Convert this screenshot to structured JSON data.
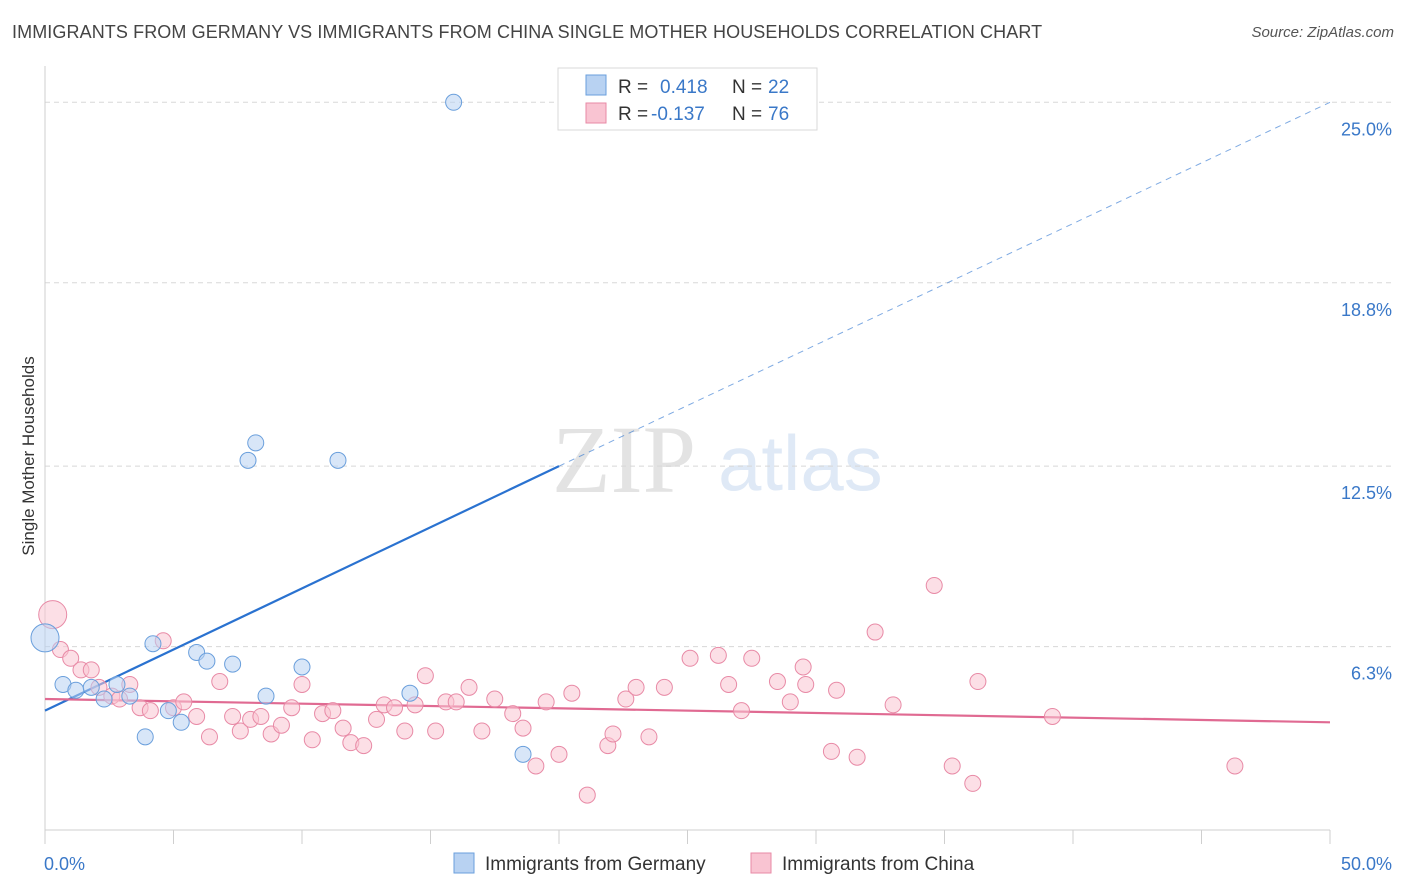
{
  "title": "IMMIGRANTS FROM GERMANY VS IMMIGRANTS FROM CHINA SINGLE MOTHER HOUSEHOLDS CORRELATION CHART",
  "source": "Source: ZipAtlas.com",
  "watermark": {
    "zip": "ZIP",
    "atlas": "atlas"
  },
  "colors": {
    "germany_fill": "#b8d2f2",
    "germany_stroke": "#6a9fdc",
    "germany_line": "#2a72d0",
    "china_fill": "#f9c4d2",
    "china_stroke": "#e88aa6",
    "china_line": "#e06a92",
    "grid": "#d8d8d8",
    "tick_text": "#3a78c8"
  },
  "chart_data": {
    "type": "scatter",
    "title": "IMMIGRANTS FROM GERMANY VS IMMIGRANTS FROM CHINA SINGLE MOTHER HOUSEHOLDS CORRELATION CHART",
    "xlabel": "",
    "ylabel": "Single Mother Households",
    "xlim": [
      0,
      50
    ],
    "ylim": [
      0,
      25.8
    ],
    "x_tick_labels": [
      "0.0%",
      "50.0%"
    ],
    "y_ticks": [
      6.3,
      12.5,
      18.8,
      25.0
    ],
    "y_tick_labels": [
      "6.3%",
      "12.5%",
      "18.8%",
      "25.0%"
    ],
    "grid": true,
    "legend": {
      "position": "top-center",
      "entries": [
        {
          "r_label": "R =",
          "r_value": "0.418",
          "n_label": "N =",
          "n_value": "22"
        },
        {
          "r_label": "R =",
          "r_value": "-0.137",
          "n_label": "N =",
          "n_value": "76"
        }
      ]
    },
    "series": [
      {
        "name": "Immigrants from Germany",
        "points": [
          [
            0.0,
            6.6
          ],
          [
            0.7,
            5.0
          ],
          [
            1.2,
            4.8
          ],
          [
            1.8,
            4.9
          ],
          [
            2.3,
            4.5
          ],
          [
            2.8,
            5.0
          ],
          [
            3.3,
            4.6
          ],
          [
            3.9,
            3.2
          ],
          [
            4.2,
            6.4
          ],
          [
            4.8,
            4.1
          ],
          [
            5.3,
            3.7
          ],
          [
            5.9,
            6.1
          ],
          [
            6.3,
            5.8
          ],
          [
            7.3,
            5.7
          ],
          [
            7.9,
            12.7
          ],
          [
            8.2,
            13.3
          ],
          [
            8.6,
            4.6
          ],
          [
            10.0,
            5.6
          ],
          [
            11.4,
            12.7
          ],
          [
            14.2,
            4.7
          ],
          [
            15.9,
            25.0
          ],
          [
            18.6,
            2.6
          ]
        ],
        "trend": {
          "x_from": 0,
          "x_to": 20,
          "y_from": 4.1,
          "y_to": 12.5,
          "dash_to_x": 50,
          "dash_to_y": 25.0
        }
      },
      {
        "name": "Immigrants from China",
        "points": [
          [
            0.3,
            7.4
          ],
          [
            0.6,
            6.2
          ],
          [
            1.0,
            5.9
          ],
          [
            1.4,
            5.5
          ],
          [
            1.8,
            5.5
          ],
          [
            2.1,
            4.9
          ],
          [
            2.6,
            4.6
          ],
          [
            2.9,
            4.5
          ],
          [
            3.3,
            5.0
          ],
          [
            3.7,
            4.2
          ],
          [
            4.1,
            4.1
          ],
          [
            4.6,
            6.5
          ],
          [
            5.0,
            4.2
          ],
          [
            5.4,
            4.4
          ],
          [
            5.9,
            3.9
          ],
          [
            6.4,
            3.2
          ],
          [
            6.8,
            5.1
          ],
          [
            7.3,
            3.9
          ],
          [
            7.6,
            3.4
          ],
          [
            8.0,
            3.8
          ],
          [
            8.4,
            3.9
          ],
          [
            8.8,
            3.3
          ],
          [
            9.2,
            3.6
          ],
          [
            9.6,
            4.2
          ],
          [
            10.0,
            5.0
          ],
          [
            10.4,
            3.1
          ],
          [
            10.8,
            4.0
          ],
          [
            11.2,
            4.1
          ],
          [
            11.6,
            3.5
          ],
          [
            11.9,
            3.0
          ],
          [
            12.4,
            2.9
          ],
          [
            12.9,
            3.8
          ],
          [
            13.2,
            4.3
          ],
          [
            13.6,
            4.2
          ],
          [
            14.0,
            3.4
          ],
          [
            14.4,
            4.3
          ],
          [
            14.8,
            5.3
          ],
          [
            15.2,
            3.4
          ],
          [
            15.6,
            4.4
          ],
          [
            16.0,
            4.4
          ],
          [
            16.5,
            4.9
          ],
          [
            17.0,
            3.4
          ],
          [
            17.5,
            4.5
          ],
          [
            18.2,
            4.0
          ],
          [
            18.6,
            3.5
          ],
          [
            19.1,
            2.2
          ],
          [
            19.5,
            4.4
          ],
          [
            20.0,
            2.6
          ],
          [
            20.5,
            4.7
          ],
          [
            21.1,
            1.2
          ],
          [
            21.9,
            2.9
          ],
          [
            22.1,
            3.3
          ],
          [
            22.6,
            4.5
          ],
          [
            23.0,
            4.9
          ],
          [
            23.5,
            3.2
          ],
          [
            24.1,
            4.9
          ],
          [
            25.1,
            5.9
          ],
          [
            26.2,
            6.0
          ],
          [
            26.6,
            5.0
          ],
          [
            27.1,
            4.1
          ],
          [
            27.5,
            5.9
          ],
          [
            28.5,
            5.1
          ],
          [
            29.0,
            4.4
          ],
          [
            29.5,
            5.6
          ],
          [
            29.6,
            5.0
          ],
          [
            30.6,
            2.7
          ],
          [
            30.8,
            4.8
          ],
          [
            31.6,
            2.5
          ],
          [
            32.3,
            6.8
          ],
          [
            34.6,
            8.4
          ],
          [
            35.3,
            2.2
          ],
          [
            36.1,
            1.6
          ],
          [
            36.3,
            5.1
          ],
          [
            39.2,
            3.9
          ],
          [
            46.3,
            2.2
          ],
          [
            33.0,
            4.3
          ]
        ],
        "trend": {
          "x_from": 0,
          "x_to": 50,
          "y_from": 4.5,
          "y_to": 3.7
        }
      }
    ]
  },
  "bottom_legend": [
    {
      "label": "Immigrants from Germany"
    },
    {
      "label": "Immigrants from China"
    }
  ]
}
